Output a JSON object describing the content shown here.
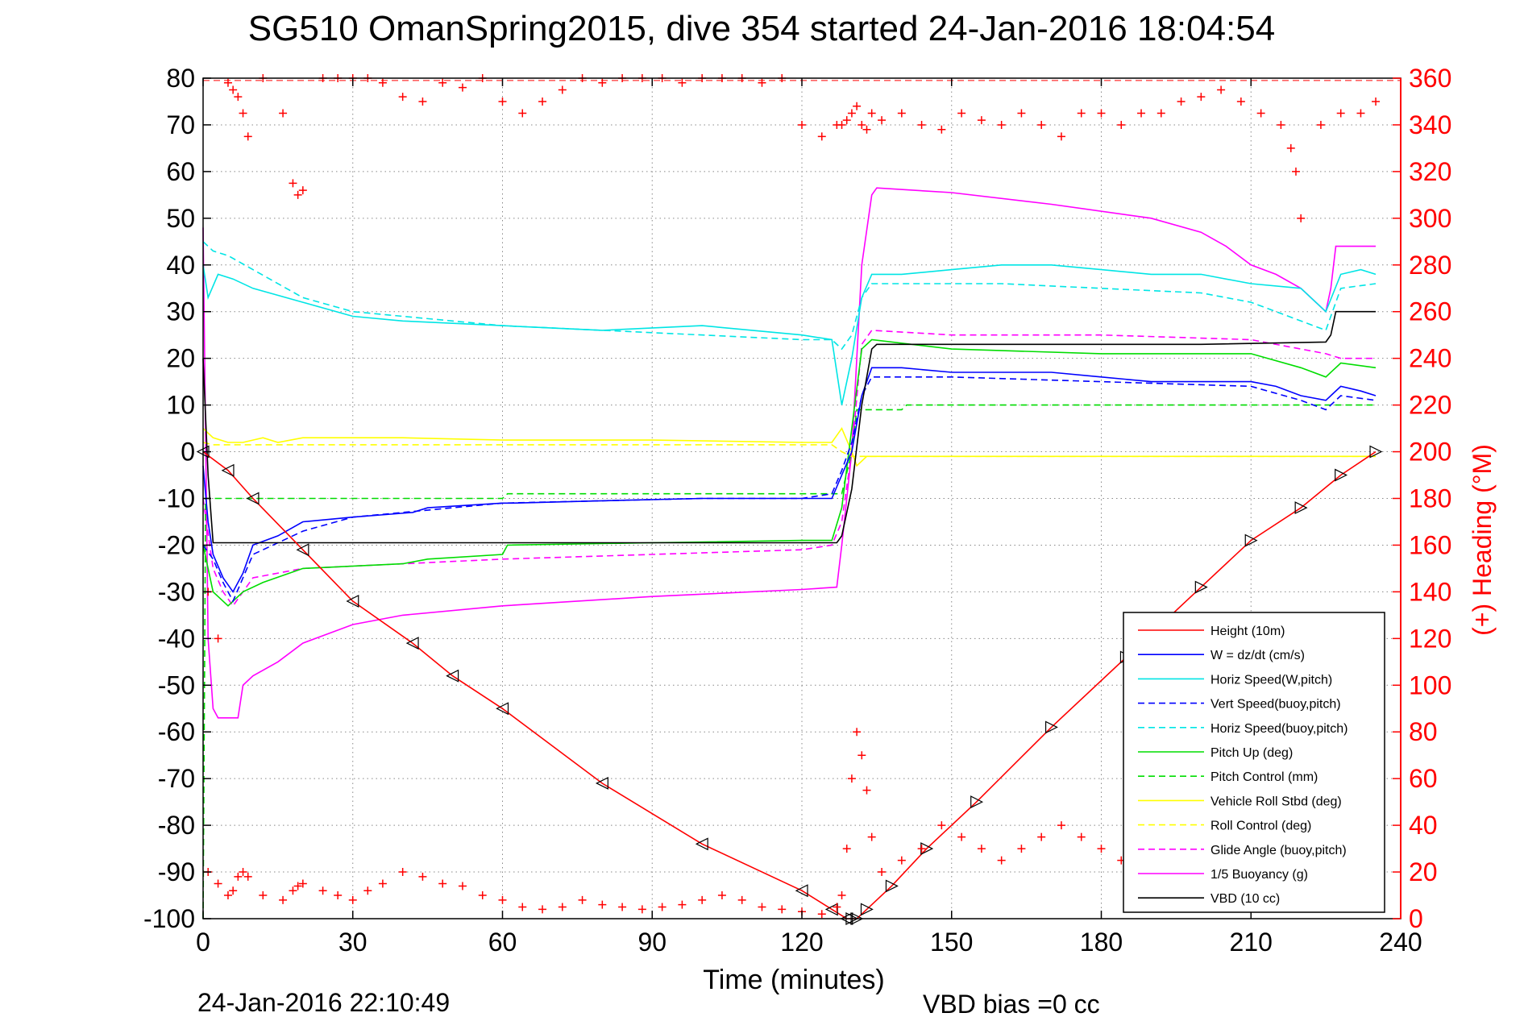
{
  "chart_data": {
    "type": "line",
    "title": "SG510 OmanSpring2015, dive 354 started 24-Jan-2016 18:04:54",
    "xlabel": "Time (minutes)",
    "ylabel": "",
    "y2label": "(+) Heading (°M)",
    "footer_left": "24-Jan-2016 22:10:49",
    "footer_right": "VBD bias =0 cc",
    "xlim": [
      0,
      240
    ],
    "ylim": [
      -100,
      80
    ],
    "y2lim": [
      0,
      360
    ],
    "xticks": [
      0,
      30,
      60,
      90,
      120,
      150,
      180,
      210,
      240
    ],
    "yticks": [
      80,
      70,
      60,
      50,
      40,
      30,
      20,
      10,
      0,
      -10,
      -20,
      -30,
      -40,
      -50,
      -60,
      -70,
      -80,
      -90,
      -100
    ],
    "y2ticks": [
      360,
      340,
      320,
      300,
      280,
      260,
      240,
      220,
      200,
      180,
      160,
      140,
      120,
      100,
      80,
      60,
      40,
      20,
      0
    ],
    "grid": true,
    "legend_position": "bottom-right",
    "colors": {
      "height": "#ff0000",
      "w": "#0000ff",
      "horiz_w": "#00e5e5",
      "vert_buoy": "#0000ff",
      "horiz_buoy": "#00e5e5",
      "pitch_up": "#00dd00",
      "pitch_control": "#00dd00",
      "roll": "#ffff00",
      "roll_control": "#ffff00",
      "glide": "#ff00ff",
      "buoyancy": "#ff00ff",
      "vbd": "#000000",
      "heading": "#ff0000",
      "axis_right": "#ff0000"
    },
    "series": [
      {
        "name": "Height (10m)",
        "key": "height",
        "style": "solid",
        "x": [
          0,
          5,
          10,
          20,
          30,
          42,
          50,
          60,
          80,
          100,
          120,
          126,
          129,
          130,
          131,
          133,
          138,
          145,
          155,
          170,
          185,
          200,
          210,
          220,
          228,
          235
        ],
        "y": [
          0,
          -4,
          -10,
          -21,
          -32,
          -41,
          -48,
          -55,
          -71,
          -84,
          -94,
          -98,
          -100,
          -100,
          -100,
          -98,
          -93,
          -85,
          -75,
          -59,
          -44,
          -29,
          -19,
          -12,
          -5,
          0
        ]
      },
      {
        "name": "W = dz/dt (cm/s)",
        "key": "w",
        "style": "solid",
        "x": [
          0,
          1,
          2,
          4,
          6,
          8,
          10,
          15,
          20,
          30,
          42,
          45,
          60,
          62,
          80,
          100,
          120,
          126,
          128,
          130,
          132,
          134,
          140,
          150,
          160,
          170,
          180,
          190,
          200,
          210,
          215,
          220,
          225,
          228,
          232,
          235
        ],
        "y": [
          -3,
          -15,
          -22,
          -27,
          -30,
          -26,
          -20,
          -18,
          -15,
          -14,
          -13,
          -12,
          -11,
          -11,
          -10.5,
          -10,
          -10,
          -10,
          -5,
          0,
          12,
          18,
          18,
          17,
          17,
          17,
          16,
          15,
          15,
          15,
          14,
          12,
          11,
          14,
          13,
          12
        ]
      },
      {
        "name": "Horiz Speed(W,pitch)",
        "key": "horiz_w",
        "style": "solid",
        "x": [
          0,
          1,
          3,
          6,
          10,
          20,
          30,
          40,
          60,
          80,
          100,
          120,
          126,
          128,
          130,
          132,
          134,
          140,
          150,
          160,
          170,
          180,
          190,
          200,
          210,
          220,
          225,
          228,
          232,
          235
        ],
        "y": [
          40,
          33,
          38,
          37,
          35,
          32,
          29,
          28,
          27,
          26,
          27,
          25,
          24,
          10,
          20,
          33,
          38,
          38,
          39,
          40,
          40,
          39,
          38,
          38,
          36,
          35,
          30,
          38,
          39,
          38
        ]
      },
      {
        "name": "Vert Speed(buoy,pitch)",
        "key": "vert_buoy",
        "style": "dashed",
        "x": [
          0,
          2,
          4,
          6,
          10,
          20,
          30,
          60,
          80,
          100,
          120,
          126,
          128,
          130,
          132,
          134,
          150,
          180,
          210,
          220,
          225,
          228,
          235
        ],
        "y": [
          -20,
          -23,
          -28,
          -32,
          -22,
          -17,
          -14,
          -11,
          -10.5,
          -10,
          -10,
          -9,
          -4,
          2,
          12,
          16,
          16,
          15,
          14,
          11,
          9,
          12,
          11
        ]
      },
      {
        "name": "Horiz Speed(buoy,pitch)",
        "key": "horiz_buoy",
        "style": "dashed",
        "x": [
          0,
          2,
          5,
          10,
          20,
          30,
          60,
          90,
          120,
          126,
          128,
          130,
          132,
          134,
          140,
          160,
          180,
          200,
          210,
          220,
          225,
          228,
          235
        ],
        "y": [
          45,
          43,
          42,
          39,
          33,
          30,
          27,
          25.5,
          24,
          24,
          22,
          25,
          33,
          36,
          36,
          36,
          35,
          34,
          32,
          28,
          26,
          35,
          36
        ]
      },
      {
        "name": "Pitch Up (deg)",
        "key": "pitch_up",
        "style": "solid",
        "x": [
          0,
          2,
          5,
          8,
          12,
          20,
          40,
          45,
          60,
          61,
          90,
          120,
          126,
          128,
          130,
          132,
          134,
          150,
          180,
          210,
          220,
          225,
          228,
          235
        ],
        "y": [
          -20,
          -30,
          -33,
          -30,
          -28,
          -25,
          -24,
          -23,
          -22,
          -20,
          -19.5,
          -19,
          -19,
          -12,
          5,
          22,
          24,
          22,
          21,
          21,
          18,
          16,
          19,
          18
        ]
      },
      {
        "name": "Pitch Control (mm)",
        "key": "pitch_control",
        "style": "dashed",
        "x": [
          0,
          0.5,
          1,
          2,
          60,
          61,
          128,
          130,
          131,
          140,
          141,
          220,
          221,
          235
        ],
        "y": [
          -100,
          -10,
          -10,
          -10,
          -10,
          -9,
          -9,
          0,
          9,
          9,
          10,
          10,
          10,
          10
        ]
      },
      {
        "name": "Vehicle Roll Stbd (deg)",
        "key": "roll",
        "style": "solid",
        "x": [
          0,
          2,
          5,
          8,
          12,
          15,
          20,
          40,
          60,
          90,
          120,
          126,
          128,
          130,
          131,
          133,
          140,
          160,
          190,
          210,
          220,
          230,
          235
        ],
        "y": [
          5,
          3,
          2,
          2,
          3,
          2,
          3,
          3,
          2.5,
          2.5,
          2,
          2,
          5,
          0,
          -3,
          -1,
          -1,
          -1,
          -1,
          -1,
          -1,
          -1,
          -1
        ]
      },
      {
        "name": "Roll Control (deg)",
        "key": "roll_control",
        "style": "dashed",
        "x": [
          0,
          2,
          30,
          60,
          120,
          126,
          128,
          130,
          140,
          180,
          220,
          235
        ],
        "y": [
          2,
          1.5,
          1.5,
          1.5,
          1.5,
          1.5,
          0,
          -1,
          -1,
          -1,
          -1,
          -1
        ]
      },
      {
        "name": "Glide Angle (buoy,pitch)",
        "key": "glide",
        "style": "dashed",
        "x": [
          0,
          2,
          4,
          6,
          10,
          20,
          40,
          60,
          90,
          120,
          126,
          128,
          130,
          132,
          134,
          150,
          180,
          210,
          220,
          225,
          228,
          235
        ],
        "y": [
          -10,
          -25,
          -30,
          -33,
          -27,
          -25,
          -24,
          -23,
          -22,
          -21,
          -20,
          -15,
          0,
          23,
          26,
          25,
          25,
          24,
          22,
          21,
          20,
          20
        ]
      },
      {
        "name": "1/5 Buoyancy (g)",
        "key": "buoyancy",
        "style": "solid",
        "x": [
          0,
          1,
          2,
          3,
          7,
          8,
          10,
          15,
          20,
          30,
          40,
          60,
          90,
          120,
          127,
          128,
          130,
          132,
          134,
          135,
          150,
          170,
          190,
          200,
          205,
          210,
          215,
          220,
          225,
          226,
          227,
          232,
          235
        ],
        "y": [
          48,
          -40,
          -55,
          -57,
          -57,
          -50,
          -48,
          -45,
          -41,
          -37,
          -35,
          -33,
          -31,
          -29.5,
          -29,
          -20,
          0,
          40,
          55,
          56.5,
          55.5,
          53,
          50,
          47,
          44,
          40,
          38,
          35,
          30,
          35,
          44,
          44,
          44
        ]
      },
      {
        "name": "VBD (10 cc)",
        "key": "vbd",
        "style": "solid",
        "x": [
          0,
          1,
          2,
          10,
          60,
          100,
          127,
          128,
          130,
          132,
          134,
          135,
          150,
          180,
          200,
          225,
          226,
          227,
          235
        ],
        "y": [
          20,
          -5,
          -19.5,
          -19.5,
          -19.5,
          -19.5,
          -19.5,
          -18,
          -8,
          10,
          22,
          23,
          23,
          23,
          23,
          23.5,
          25,
          30,
          30
        ]
      }
    ],
    "heading_series": {
      "name": "Heading",
      "marker": "+",
      "x": [
        1,
        3,
        5,
        6,
        7,
        8,
        9,
        12,
        16,
        18,
        19,
        20,
        24,
        27,
        30,
        33,
        36,
        40,
        44,
        48,
        52,
        56,
        60,
        64,
        68,
        72,
        76,
        80,
        84,
        88,
        92,
        96,
        100,
        104,
        108,
        112,
        116,
        120,
        124,
        127,
        128,
        129,
        130,
        131,
        132,
        133,
        134,
        136,
        140,
        144,
        148,
        152,
        156,
        160,
        164,
        168,
        172,
        176,
        180,
        184,
        188,
        192,
        196,
        200,
        204,
        208,
        212,
        216,
        218,
        219,
        220,
        224,
        228,
        232,
        235
      ],
      "y": [
        140,
        120,
        358,
        355,
        352,
        345,
        335,
        362,
        345,
        315,
        310,
        312,
        360,
        362,
        362,
        360,
        358,
        352,
        350,
        358,
        356,
        362,
        350,
        345,
        350,
        355,
        360,
        358,
        362,
        360,
        360,
        358,
        361,
        361,
        362,
        358,
        362,
        340,
        335,
        340,
        340,
        342,
        345,
        348,
        340,
        338,
        345,
        342,
        345,
        340,
        338,
        345,
        342,
        340,
        345,
        340,
        335,
        345,
        345,
        340,
        345,
        345,
        350,
        352,
        355,
        350,
        345,
        340,
        330,
        320,
        300,
        340,
        345,
        345,
        350
      ],
      "y_bottom": [
        20,
        15,
        10,
        12,
        18,
        20,
        18,
        10,
        8,
        12,
        14,
        15,
        12,
        10,
        8,
        12,
        15,
        20,
        18,
        15,
        14,
        10,
        8,
        5,
        4,
        5,
        8,
        6,
        5,
        4,
        5,
        6,
        8,
        10,
        8,
        5,
        4,
        3,
        2,
        5,
        10,
        30,
        60,
        80,
        70,
        55,
        35,
        20,
        25,
        30,
        40,
        35,
        30,
        25,
        30,
        35,
        40,
        35,
        30,
        25,
        30,
        40,
        45,
        40,
        35,
        30,
        25,
        20,
        15,
        10,
        15,
        20,
        15,
        10,
        5
      ]
    }
  }
}
